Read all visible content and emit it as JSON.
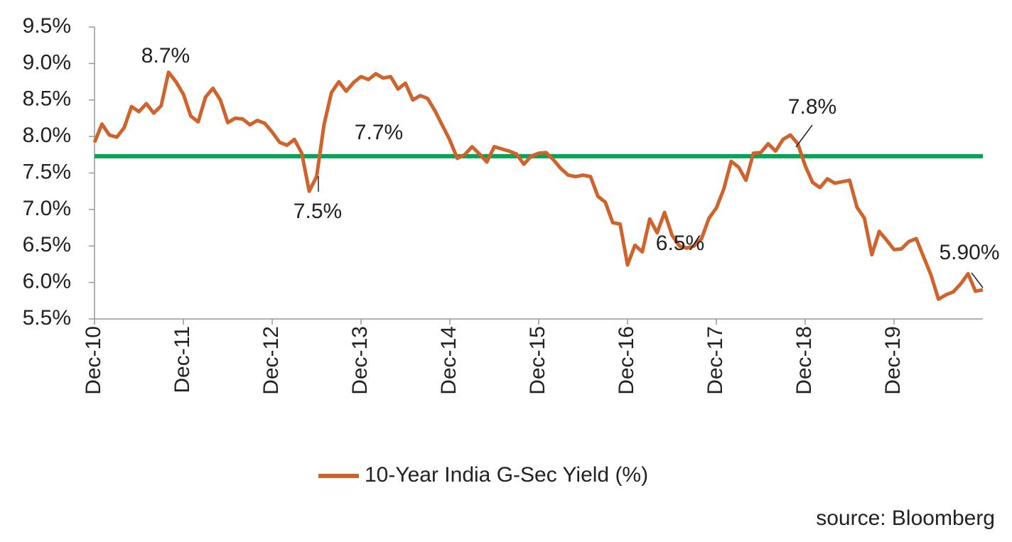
{
  "chart_data": {
    "type": "line",
    "categories": [
      "Dec-10",
      null,
      null,
      null,
      null,
      null,
      null,
      null,
      null,
      null,
      null,
      null,
      "Dec-11",
      null,
      null,
      null,
      null,
      null,
      null,
      null,
      null,
      null,
      null,
      null,
      "Dec-12",
      null,
      null,
      null,
      null,
      null,
      null,
      null,
      null,
      null,
      null,
      null,
      "Dec-13",
      null,
      null,
      null,
      null,
      null,
      null,
      null,
      null,
      null,
      null,
      null,
      "Dec-14",
      null,
      null,
      null,
      null,
      null,
      null,
      null,
      null,
      null,
      null,
      null,
      "Dec-15",
      null,
      null,
      null,
      null,
      null,
      null,
      null,
      null,
      null,
      null,
      null,
      "Dec-16",
      null,
      null,
      null,
      null,
      null,
      null,
      null,
      null,
      null,
      null,
      null,
      "Dec-17",
      null,
      null,
      null,
      null,
      null,
      null,
      null,
      null,
      null,
      null,
      null,
      "Dec-18",
      null,
      null,
      null,
      null,
      null,
      null,
      null,
      null,
      null,
      null,
      null,
      "Dec-19",
      null,
      null,
      null,
      null,
      null,
      null,
      null,
      null,
      null,
      null,
      null,
      null
    ],
    "series": [
      {
        "name": "10-Year India G-Sec Yield (%)",
        "color": "#d0632b",
        "values": [
          7.92,
          8.17,
          8.02,
          7.99,
          8.12,
          8.41,
          8.34,
          8.45,
          8.32,
          8.42,
          8.88,
          8.75,
          8.58,
          8.28,
          8.2,
          8.54,
          8.66,
          8.5,
          8.19,
          8.25,
          8.24,
          8.16,
          8.22,
          8.18,
          8.06,
          7.92,
          7.88,
          7.96,
          7.77,
          7.25,
          7.45,
          8.16,
          8.6,
          8.75,
          8.62,
          8.74,
          8.82,
          8.78,
          8.86,
          8.8,
          8.82,
          8.65,
          8.73,
          8.5,
          8.56,
          8.52,
          8.35,
          8.15,
          7.95,
          7.7,
          7.75,
          7.86,
          7.76,
          7.65,
          7.86,
          7.83,
          7.8,
          7.76,
          7.62,
          7.73,
          7.77,
          7.78,
          7.68,
          7.56,
          7.47,
          7.45,
          7.47,
          7.45,
          7.18,
          7.1,
          6.82,
          6.8,
          6.24,
          6.51,
          6.42,
          6.87,
          6.68,
          6.96,
          6.65,
          6.5,
          6.47,
          6.5,
          6.6,
          6.88,
          7.02,
          7.28,
          7.66,
          7.58,
          7.4,
          7.77,
          7.78,
          7.9,
          7.8,
          7.96,
          8.02,
          7.9,
          7.6,
          7.37,
          7.3,
          7.42,
          7.36,
          7.38,
          7.4,
          7.03,
          6.88,
          6.38,
          6.7,
          6.58,
          6.45,
          6.46,
          6.56,
          6.6,
          6.35,
          6.1,
          5.77,
          5.83,
          5.87,
          5.98,
          6.12,
          5.88,
          5.9
        ]
      }
    ],
    "reference_line": {
      "value": 7.73,
      "color": "#00a651"
    },
    "ylim": [
      5.5,
      9.5
    ],
    "yticks": [
      {
        "value": 5.5,
        "label": "5.5%"
      },
      {
        "value": 6.0,
        "label": "6.0%"
      },
      {
        "value": 6.5,
        "label": "6.5%"
      },
      {
        "value": 7.0,
        "label": "7.0%"
      },
      {
        "value": 7.5,
        "label": "7.5%"
      },
      {
        "value": 8.0,
        "label": "8.0%"
      },
      {
        "value": 8.5,
        "label": "8.5%"
      },
      {
        "value": 9.0,
        "label": "9.0%"
      },
      {
        "value": 9.5,
        "label": "9.5%"
      }
    ],
    "grid": false,
    "legend": "bottom",
    "annotations": [
      "8.7%",
      "7.5%",
      "7.7%",
      "6.5%",
      "7.8%",
      "5.90%"
    ],
    "source": "source: Bloomberg"
  }
}
